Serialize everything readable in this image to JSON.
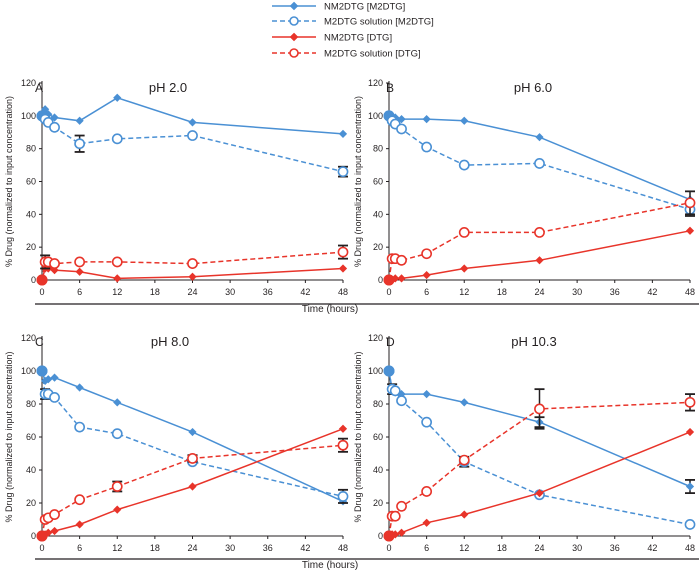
{
  "chart_data": {
    "type": "line",
    "x_label": "Time (hours)",
    "y_label": "% Drug (normalized to input concentration)",
    "x_ticks": [
      0,
      6,
      12,
      18,
      24,
      30,
      36,
      42,
      48
    ],
    "y_ticks": [
      0,
      20,
      40,
      60,
      80,
      100,
      120
    ],
    "xlim": [
      0,
      48
    ],
    "ylim": [
      0,
      120
    ],
    "colors": {
      "blue": "#4a90d4",
      "red": "#e8342a",
      "errorbar": "#231f20"
    },
    "legend": [
      {
        "label": "NM2DTG [M2DTG]",
        "color": "#4a90d4",
        "line": "solid",
        "marker": "diamond"
      },
      {
        "label": "M2DTG solution [M2DTG]",
        "color": "#4a90d4",
        "line": "dashed",
        "marker": "open-circle"
      },
      {
        "label": "NM2DTG [DTG]",
        "color": "#e8342a",
        "line": "solid",
        "marker": "diamond"
      },
      {
        "label": "M2DTG solution [DTG]",
        "color": "#e8342a",
        "line": "dashed",
        "marker": "open-circle"
      }
    ],
    "panels": [
      {
        "label": "A",
        "title": "pH 2.0",
        "series": [
          {
            "name": "NM2DTG [M2DTG]",
            "x": [
              0,
              0.5,
              1,
              2,
              6,
              12,
              24,
              48
            ],
            "y": [
              100,
              104,
              101,
              99,
              97,
              111,
              96,
              89
            ]
          },
          {
            "name": "M2DTG solution [M2DTG]",
            "x": [
              0,
              0.5,
              1,
              2,
              6,
              12,
              24,
              48
            ],
            "y": [
              100,
              98,
              96,
              93,
              83,
              86,
              88,
              66
            ],
            "err": [
              0,
              0,
              0,
              0,
              5,
              0,
              0,
              3
            ]
          },
          {
            "name": "NM2DTG [DTG]",
            "x": [
              0,
              0.5,
              1,
              2,
              6,
              12,
              24,
              48
            ],
            "y": [
              0,
              7,
              7,
              6,
              5,
              1,
              2,
              7
            ]
          },
          {
            "name": "M2DTG solution [DTG]",
            "x": [
              0,
              0.5,
              1,
              2,
              6,
              12,
              24,
              48
            ],
            "y": [
              0,
              11,
              11,
              10,
              11,
              11,
              10,
              17
            ],
            "err": [
              0,
              4,
              0,
              0,
              0,
              0,
              0,
              4
            ]
          }
        ]
      },
      {
        "label": "B",
        "title": "pH 6.0",
        "series": [
          {
            "name": "NM2DTG [M2DTG]",
            "x": [
              0,
              0.5,
              1,
              2,
              6,
              12,
              24,
              48
            ],
            "y": [
              100,
              99,
              99,
              98,
              98,
              97,
              87,
              49
            ]
          },
          {
            "name": "M2DTG solution [M2DTG]",
            "x": [
              0,
              0.5,
              1,
              2,
              6,
              12,
              24,
              48
            ],
            "y": [
              100,
              97,
              95,
              92,
              81,
              70,
              71,
              43
            ],
            "err": [
              0,
              0,
              0,
              0,
              0,
              0,
              0,
              4
            ]
          },
          {
            "name": "NM2DTG [DTG]",
            "x": [
              0,
              0.5,
              1,
              2,
              6,
              12,
              24,
              48
            ],
            "y": [
              0,
              0,
              1,
              1,
              3,
              7,
              12,
              30
            ]
          },
          {
            "name": "M2DTG solution [DTG]",
            "x": [
              0,
              0.5,
              1,
              2,
              6,
              12,
              24,
              48
            ],
            "y": [
              0,
              13,
              13,
              12,
              16,
              29,
              29,
              47
            ],
            "err": [
              0,
              0,
              0,
              0,
              0,
              0,
              0,
              7
            ]
          }
        ]
      },
      {
        "label": "C",
        "title": "pH 8.0",
        "series": [
          {
            "name": "NM2DTG [M2DTG]",
            "x": [
              0,
              0.5,
              1,
              2,
              6,
              12,
              24,
              48
            ],
            "y": [
              100,
              94,
              95,
              96,
              90,
              81,
              63,
              21
            ]
          },
          {
            "name": "M2DTG solution [M2DTG]",
            "x": [
              0,
              0.5,
              1,
              2,
              6,
              12,
              24,
              48
            ],
            "y": [
              100,
              86,
              86,
              84,
              66,
              62,
              45,
              24
            ],
            "err": [
              0,
              3,
              0,
              0,
              0,
              0,
              0,
              4
            ]
          },
          {
            "name": "NM2DTG [DTG]",
            "x": [
              0,
              0.5,
              1,
              2,
              6,
              12,
              24,
              48
            ],
            "y": [
              0,
              1,
              2,
              3,
              7,
              16,
              30,
              65
            ]
          },
          {
            "name": "M2DTG solution [DTG]",
            "x": [
              0,
              0.5,
              1,
              2,
              6,
              12,
              24,
              48
            ],
            "y": [
              0,
              10,
              11,
              13,
              22,
              30,
              47,
              55
            ],
            "err": [
              0,
              0,
              0,
              0,
              0,
              3,
              2,
              4
            ]
          }
        ]
      },
      {
        "label": "D",
        "title": "pH 10.3",
        "series": [
          {
            "name": "NM2DTG [M2DTG]",
            "x": [
              0,
              0.5,
              1,
              2,
              6,
              12,
              24,
              48
            ],
            "y": [
              100,
              88,
              87,
              86,
              86,
              81,
              69,
              30
            ],
            "err": [
              0,
              0,
              0,
              0,
              0,
              0,
              3,
              4
            ]
          },
          {
            "name": "M2DTG solution [M2DTG]",
            "x": [
              0,
              0.5,
              1,
              2,
              6,
              12,
              24,
              48
            ],
            "y": [
              100,
              89,
              88,
              82,
              69,
              45,
              25,
              7
            ],
            "err": [
              0,
              3,
              0,
              0,
              0,
              3,
              0,
              0
            ]
          },
          {
            "name": "NM2DTG [DTG]",
            "x": [
              0,
              0.5,
              1,
              2,
              6,
              12,
              24,
              48
            ],
            "y": [
              0,
              1,
              1,
              2,
              8,
              13,
              26,
              63
            ]
          },
          {
            "name": "M2DTG solution [DTG]",
            "x": [
              0,
              0.5,
              1,
              2,
              6,
              12,
              24,
              48
            ],
            "y": [
              0,
              12,
              12,
              18,
              27,
              46,
              77,
              81
            ],
            "err": [
              0,
              0,
              0,
              0,
              0,
              0,
              12,
              5
            ]
          }
        ]
      }
    ]
  }
}
